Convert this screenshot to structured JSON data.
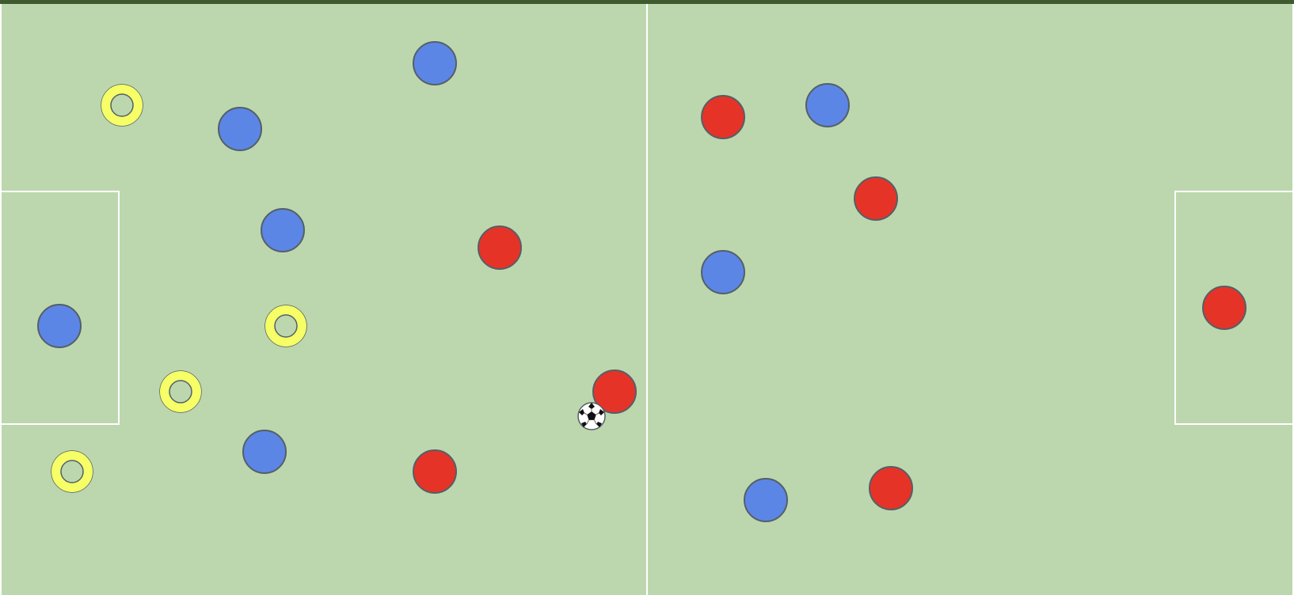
{
  "colors": {
    "pitch": "#bcd7ad",
    "top_band": "#3f5a2f",
    "line": "#ffffff",
    "blue_team": "#5b86e6",
    "red_team": "#e63328",
    "marker": "#f7ff66",
    "outline": "#555f66"
  },
  "icons": {
    "ball": "soccer-ball-icon",
    "player_blue": "blue-player-disc",
    "player_red": "red-player-disc",
    "marker": "yellow-ring-marker"
  },
  "players": {
    "blue": [
      {
        "id": "blue-1"
      },
      {
        "id": "blue-2"
      },
      {
        "id": "blue-3"
      },
      {
        "id": "blue-4"
      },
      {
        "id": "blue-5"
      },
      {
        "id": "blue-6"
      },
      {
        "id": "blue-7"
      },
      {
        "id": "blue-8"
      }
    ],
    "red": [
      {
        "id": "red-1"
      },
      {
        "id": "red-2"
      },
      {
        "id": "red-3"
      },
      {
        "id": "red-4"
      },
      {
        "id": "red-5"
      },
      {
        "id": "red-6"
      },
      {
        "id": "red-7"
      }
    ]
  },
  "markers": [
    {
      "id": "marker-1"
    },
    {
      "id": "marker-2"
    },
    {
      "id": "marker-3"
    },
    {
      "id": "marker-4"
    }
  ]
}
